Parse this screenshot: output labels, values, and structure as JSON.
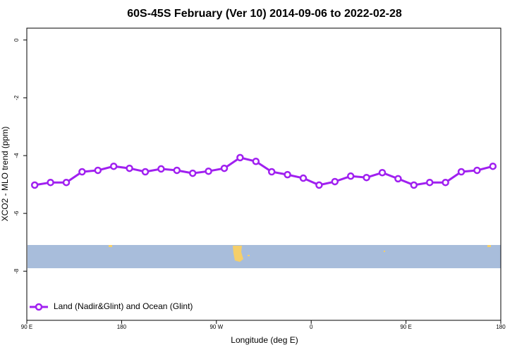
{
  "chart_data": {
    "type": "line",
    "title": "60S-45S February (Ver 10)   2014-09-06 to 2022-02-28",
    "x_label": "Longitude (deg E)",
    "y_label": "XCO2 - MLO trend (ppm)",
    "x": [
      97.5,
      112.5,
      127.5,
      142.5,
      157.5,
      172.5,
      187.5,
      202.5,
      217.5,
      232.5,
      247.5,
      262.5,
      277.5,
      292.5,
      307.5,
      322.5,
      337.5,
      352.5,
      367.5,
      382.5,
      397.5,
      412.5,
      427.5,
      442.5,
      457.5,
      472.5,
      487.5,
      502.5,
      517.5,
      532.5
    ],
    "series": [
      {
        "name": "Land (Nadir&Glint) and Ocean (Glint)",
        "color": "#a020f0",
        "values": [
          -5.02,
          -4.93,
          -4.93,
          -4.56,
          -4.51,
          -4.37,
          -4.44,
          -4.56,
          -4.46,
          -4.51,
          -4.61,
          -4.54,
          -4.44,
          -4.07,
          -4.2,
          -4.56,
          -4.66,
          -4.78,
          -5.02,
          -4.9,
          -4.71,
          -4.76,
          -4.59,
          -4.8,
          -5.02,
          -4.93,
          -4.93,
          -4.56,
          -4.51,
          -4.37
        ]
      }
    ],
    "xlim": [
      90,
      540
    ],
    "xticks": [
      {
        "value": 90,
        "label": "90 E"
      },
      {
        "value": 180,
        "label": "180"
      },
      {
        "value": 270,
        "label": "90 W"
      },
      {
        "value": 360,
        "label": "0"
      },
      {
        "value": 450,
        "label": "90 E"
      },
      {
        "value": 540,
        "label": "180"
      }
    ],
    "ylim": [
      -9.7,
      0.41
    ],
    "yticks": [
      0,
      -2,
      -4,
      -6,
      -8
    ],
    "legend": "bottom-left"
  }
}
